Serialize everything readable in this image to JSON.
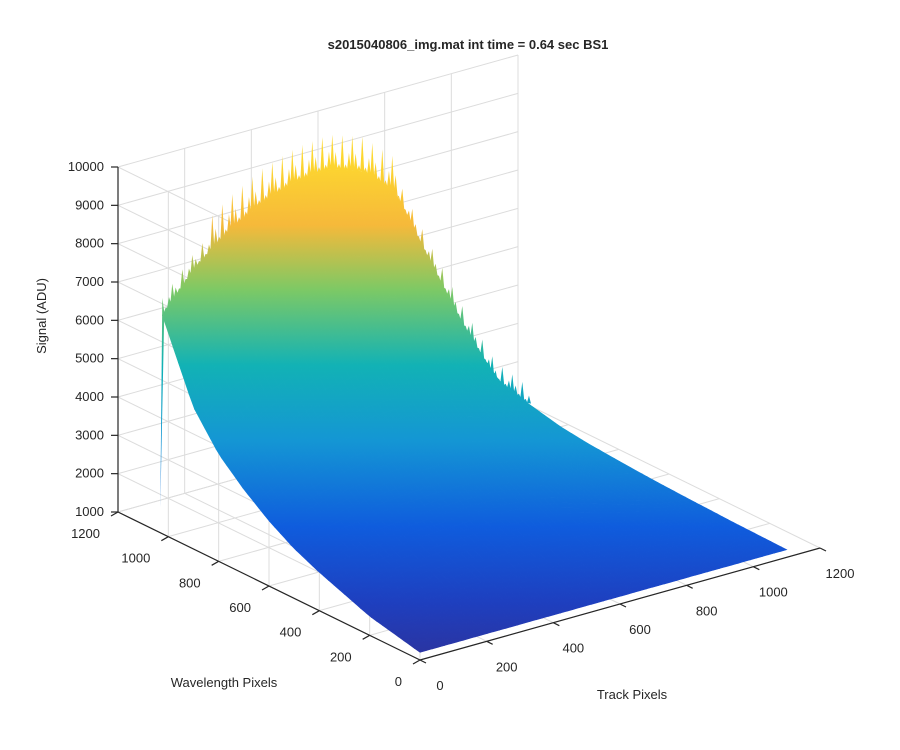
{
  "chart_data": {
    "type": "surface",
    "title": "s2015040806_img.mat int time = 0.64 sec   BS1",
    "xlabel": "Track Pixels",
    "ylabel": "Wavelength Pixels",
    "zlabel": "Signal (ADU)",
    "xlim": [
      0,
      1200
    ],
    "ylim": [
      0,
      1200
    ],
    "zlim": [
      1000,
      10000
    ],
    "xticks": [
      "0",
      "200",
      "400",
      "600",
      "800",
      "1000",
      "1200"
    ],
    "yticks": [
      "0",
      "200",
      "400",
      "600",
      "800",
      "1000",
      "1200"
    ],
    "zticks": [
      "1000",
      "2000",
      "3000",
      "4000",
      "5000",
      "6000",
      "7000",
      "8000",
      "9000",
      "10000"
    ],
    "grid": true,
    "colormap": "parula",
    "colors": {
      "low": "#352a87",
      "mid_low": "#0f5cdd",
      "mid": "#12b2b5",
      "mid_high": "#7dc965",
      "high": "#fdd72f",
      "grid": "#dcdcdc",
      "axis": "#262626"
    },
    "data_extent": {
      "track_pixels": [
        0,
        1100
      ],
      "wavelength_pixels": [
        0,
        1024
      ]
    },
    "edge_profile_wavelength_max": {
      "track_pixels": [
        0,
        100,
        200,
        300,
        400,
        500,
        600,
        700,
        800,
        900,
        1000,
        1100
      ],
      "signal": [
        6700,
        7700,
        8400,
        8900,
        9200,
        9300,
        9000,
        8200,
        6200,
        4300,
        2600,
        1700
      ]
    },
    "edge_profile_track_zero": {
      "wavelength_pixels": [
        1024,
        900,
        800,
        700,
        600,
        500,
        400,
        300,
        200,
        100,
        0
      ],
      "signal": [
        6700,
        4700,
        3800,
        3200,
        2700,
        2300,
        2000,
        1750,
        1500,
        1350,
        1200
      ]
    }
  }
}
